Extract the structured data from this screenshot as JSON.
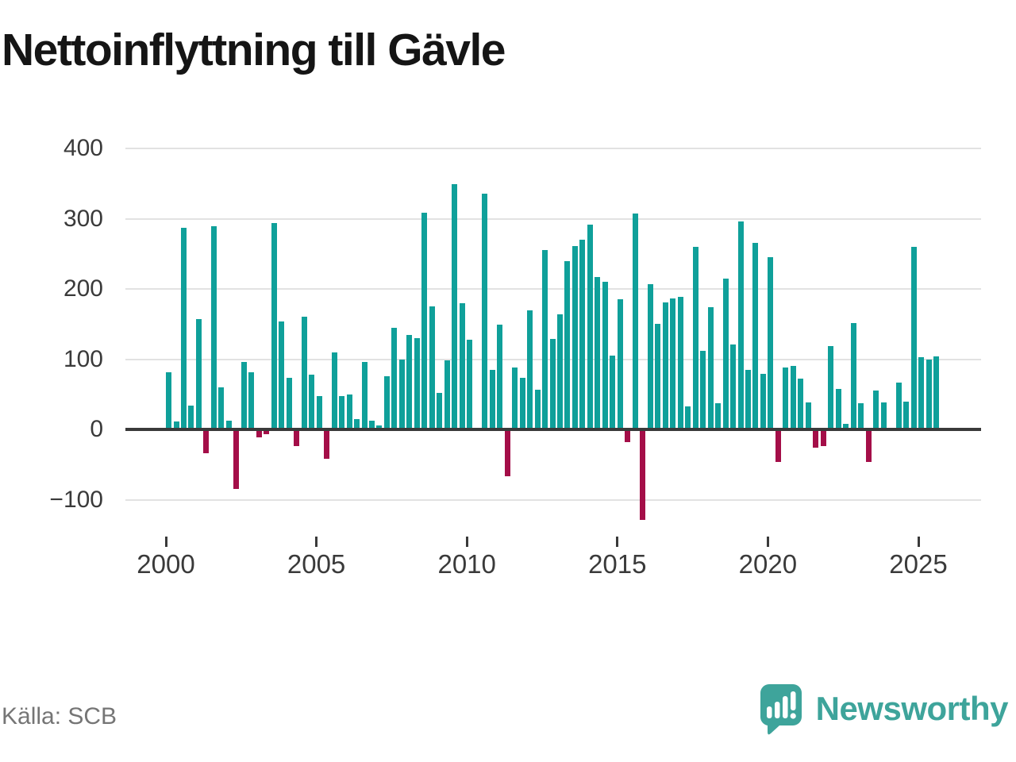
{
  "title": "Nettoinflyttning till Gävle",
  "source": "Källa: SCB",
  "branding": {
    "logo_text": "Newsworthy",
    "logo_icon": "newsworthy-speech-bubble-bar-chart-icon"
  },
  "colors": {
    "bar_positive": "#0fa09a",
    "bar_negative": "#a40e48",
    "axis_text": "#3a3a3a",
    "zero_line": "#3a3a3a",
    "gridline": "#e2e2e2",
    "brand_teal": "#3ea49b",
    "source_text": "#757575",
    "title_text": "#151515"
  },
  "chart_data": {
    "type": "bar",
    "title": "Nettoinflyttning till Gävle",
    "xlabel": "",
    "ylabel": "",
    "frequency": "quarterly",
    "x_start": "2000-Q1",
    "x_end": "2025-Q3",
    "ylim": [
      -150,
      420
    ],
    "yticks": [
      400,
      300,
      200,
      100,
      0,
      -100
    ],
    "ytick_labels": [
      "400",
      "300",
      "200",
      "100",
      "0",
      "−100"
    ],
    "xticks": [
      2000,
      2005,
      2010,
      2015,
      2020,
      2025
    ],
    "xtick_labels": [
      "2000",
      "2005",
      "2010",
      "2015",
      "2020",
      "2025"
    ],
    "grid": "horizontal",
    "legend": "none",
    "values": [
      81,
      11,
      287,
      34,
      157,
      -33,
      289,
      60,
      13,
      -84,
      96,
      81,
      -10,
      -6,
      294,
      154,
      73,
      -23,
      160,
      78,
      47,
      -41,
      110,
      47,
      50,
      15,
      96,
      12,
      6,
      76,
      145,
      99,
      135,
      130,
      309,
      175,
      52,
      98,
      349,
      180,
      128,
      2,
      336,
      85,
      149,
      -65,
      88,
      74,
      170,
      57,
      255,
      129,
      164,
      240,
      261,
      270,
      292,
      217,
      210,
      105,
      185,
      -17,
      307,
      -128,
      207,
      150,
      181,
      187,
      189,
      33,
      260,
      112,
      174,
      37,
      215,
      121,
      296,
      85,
      266,
      79,
      245,
      -45,
      88,
      91,
      72,
      39,
      -25,
      -23,
      119,
      58,
      8,
      151,
      37,
      -45,
      55,
      38,
      2,
      67,
      40,
      260,
      103,
      100,
      104
    ]
  }
}
